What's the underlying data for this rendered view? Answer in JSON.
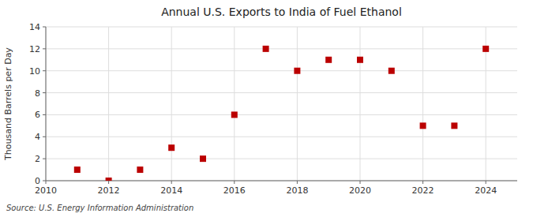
{
  "chart_data": {
    "type": "scatter",
    "title": "Annual U.S. Exports to India of Fuel Ethanol",
    "y_label": "Thousand Barrels per Day",
    "annotations": [
      "Source: U.S. Energy Information Administration"
    ],
    "x": [
      2011,
      2012,
      2013,
      2014,
      2015,
      2016,
      2017,
      2018,
      2019,
      2020,
      2021,
      2022,
      2023,
      2024
    ],
    "values": [
      1,
      0,
      1,
      3,
      2,
      6,
      12,
      10,
      11,
      11,
      10,
      5,
      5,
      12
    ],
    "color": "#bb0000",
    "marker": "square",
    "xlim": [
      2010,
      2025
    ],
    "ylim": [
      0,
      14
    ],
    "xticks": [
      2010,
      2012,
      2014,
      2016,
      2018,
      2020,
      2022,
      2024
    ],
    "yticks": [
      0,
      2,
      4,
      6,
      8,
      10,
      12,
      14
    ],
    "grid": true
  }
}
